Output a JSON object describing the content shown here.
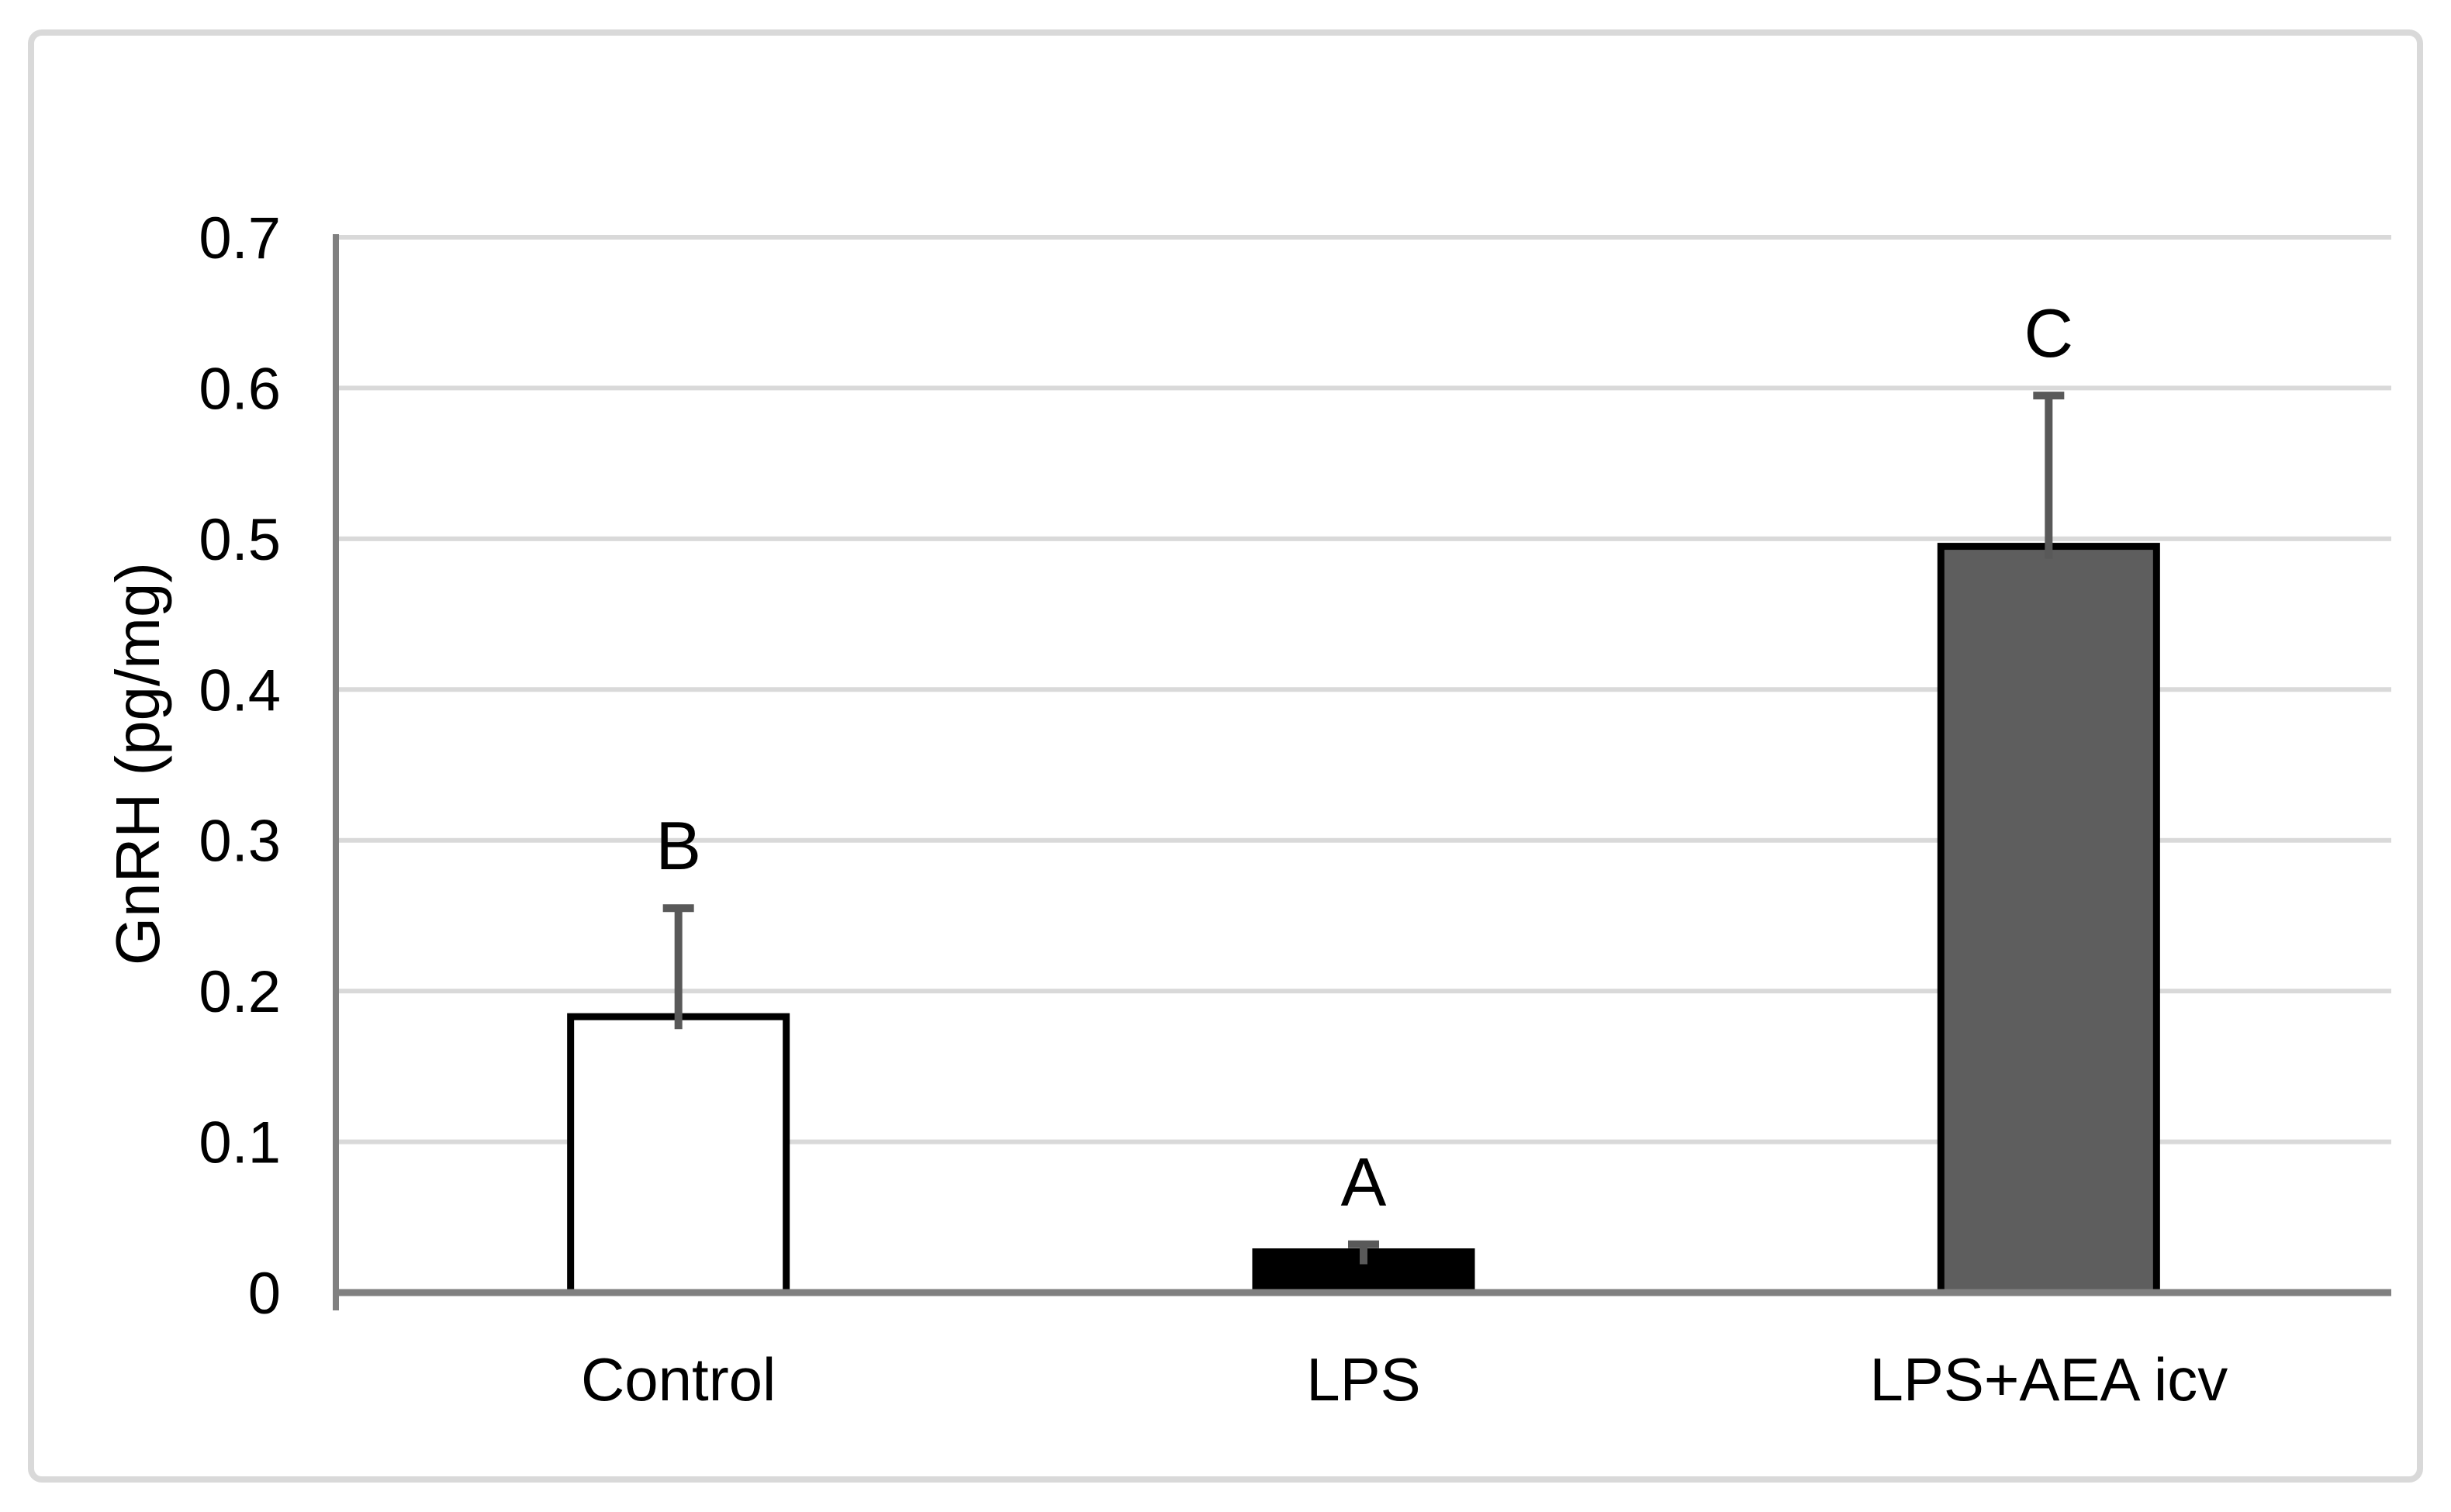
{
  "figure": {
    "background": "#ffffff"
  },
  "chart_data": {
    "type": "bar",
    "title": "",
    "xlabel": "",
    "ylabel": "GnRH (pg/mg)",
    "ylim": [
      0,
      0.7
    ],
    "ytick_step": 0.1,
    "ytick_labels": [
      "0",
      "0.1",
      "0.2",
      "0.3",
      "0.4",
      "0.5",
      "0.6",
      "0.7"
    ],
    "grid": true,
    "legend": "none",
    "categories": [
      "Control",
      "LPS",
      "LPS+AEA icv"
    ],
    "series": [
      {
        "name": "GnRH",
        "values": [
          0.183,
          0.027,
          0.495
        ],
        "error_upper": [
          0.072,
          0.005,
          0.1
        ],
        "bar_fills": [
          "#ffffff",
          "#000000",
          "#5e5e5e"
        ]
      }
    ],
    "annotations": [
      "B",
      "A",
      "C"
    ],
    "colors": {
      "gridline": "#d9d9d9",
      "figure_border": "#d9d9d9",
      "axis_line": "#808080",
      "error_bar": "#595959",
      "bar_border": "#000000",
      "text": "#000000"
    }
  }
}
